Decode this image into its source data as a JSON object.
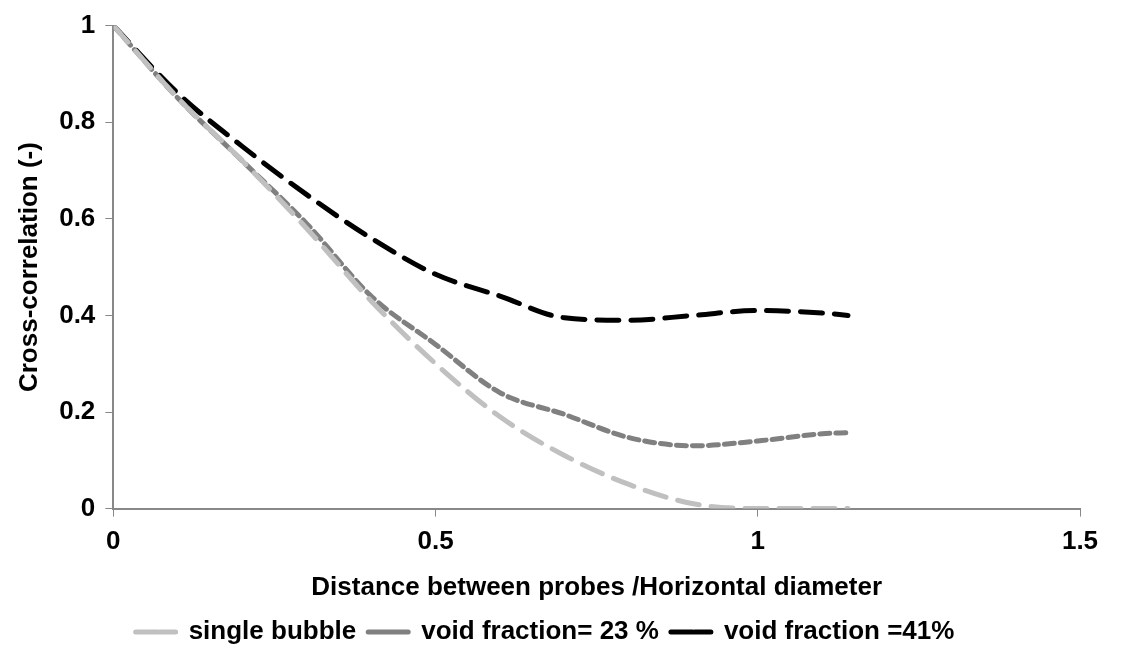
{
  "chart_data": {
    "type": "line",
    "xlabel": "Distance between probes /Horizontal diameter",
    "ylabel": "Cross-correlation (-)",
    "x": [
      0,
      0.1,
      0.2,
      0.3,
      0.4,
      0.5,
      0.6,
      0.7,
      0.8,
      0.9,
      1.0,
      1.1,
      1.14
    ],
    "series": [
      {
        "name": "single bubble",
        "color": "#c0c0c0",
        "line_style": "dashed",
        "values": [
          1,
          0.85,
          0.72,
          0.58,
          0.43,
          0.3,
          0.19,
          0.11,
          0.05,
          0.01,
          0,
          0,
          0
        ]
      },
      {
        "name": "void fraction= 23 %",
        "color": "#808080",
        "line_style": "dotted",
        "values": [
          1,
          0.85,
          0.72,
          0.59,
          0.44,
          0.34,
          0.24,
          0.195,
          0.147,
          0.13,
          0.14,
          0.155,
          0.157
        ]
      },
      {
        "name": "void fraction =41%",
        "color": "#000000",
        "line_style": "dashed",
        "values": [
          1,
          0.86,
          0.75,
          0.65,
          0.56,
          0.485,
          0.44,
          0.395,
          0.39,
          0.4,
          0.41,
          0.405,
          0.4
        ]
      }
    ],
    "xlim": [
      0,
      1.5
    ],
    "xticks": [
      0,
      0.5,
      1,
      1.5
    ],
    "ylim": [
      0,
      1
    ],
    "yticks": [
      0,
      0.2,
      0.4,
      0.6,
      0.8,
      1
    ],
    "grid": false,
    "legend": "bottom",
    "marker": "none"
  }
}
